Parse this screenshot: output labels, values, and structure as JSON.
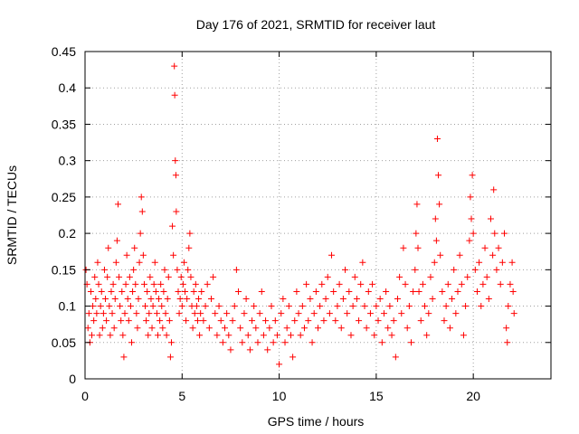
{
  "chart_data": {
    "type": "scatter",
    "title": "Day 176 of 2021, SRMTID for receiver laut",
    "xlabel": "GPS time / hours",
    "ylabel": "SRMTID / TECUs",
    "xlim": [
      0,
      24
    ],
    "ylim": [
      0,
      0.45
    ],
    "xticks": [
      0,
      5,
      10,
      15,
      20
    ],
    "xtick_labels": [
      "0",
      "5",
      "10",
      "15",
      "20"
    ],
    "yticks": [
      0,
      0.05,
      0.1,
      0.15,
      0.2,
      0.25,
      0.3,
      0.35,
      0.4,
      0.45
    ],
    "ytick_labels": [
      "0",
      "0.05",
      "0.1",
      "0.15",
      "0.2",
      "0.25",
      "0.3",
      "0.35",
      "0.4",
      "0.45"
    ],
    "grid": true,
    "marker": "plus",
    "color": "#ff0000",
    "points": [
      [
        0.05,
        0.15
      ],
      [
        0.1,
        0.13
      ],
      [
        0.15,
        0.07
      ],
      [
        0.2,
        0.09
      ],
      [
        0.25,
        0.05
      ],
      [
        0.3,
        0.12
      ],
      [
        0.35,
        0.06
      ],
      [
        0.4,
        0.1
      ],
      [
        0.45,
        0.08
      ],
      [
        0.5,
        0.14
      ],
      [
        0.55,
        0.11
      ],
      [
        0.6,
        0.09
      ],
      [
        0.65,
        0.16
      ],
      [
        0.7,
        0.13
      ],
      [
        0.75,
        0.06
      ],
      [
        0.8,
        0.1
      ],
      [
        0.85,
        0.12
      ],
      [
        0.9,
        0.07
      ],
      [
        0.95,
        0.09
      ],
      [
        1.0,
        0.15
      ],
      [
        1.05,
        0.11
      ],
      [
        1.1,
        0.08
      ],
      [
        1.15,
        0.14
      ],
      [
        1.2,
        0.18
      ],
      [
        1.25,
        0.1
      ],
      [
        1.3,
        0.06
      ],
      [
        1.35,
        0.12
      ],
      [
        1.4,
        0.09
      ],
      [
        1.45,
        0.13
      ],
      [
        1.5,
        0.07
      ],
      [
        1.55,
        0.11
      ],
      [
        1.6,
        0.16
      ],
      [
        1.65,
        0.19
      ],
      [
        1.7,
        0.24
      ],
      [
        1.75,
        0.14
      ],
      [
        1.8,
        0.1
      ],
      [
        1.85,
        0.08
      ],
      [
        1.9,
        0.12
      ],
      [
        1.95,
        0.06
      ],
      [
        2.0,
        0.03
      ],
      [
        2.05,
        0.09
      ],
      [
        2.1,
        0.13
      ],
      [
        2.15,
        0.17
      ],
      [
        2.2,
        0.11
      ],
      [
        2.25,
        0.08
      ],
      [
        2.3,
        0.14
      ],
      [
        2.35,
        0.1
      ],
      [
        2.4,
        0.05
      ],
      [
        2.45,
        0.12
      ],
      [
        2.5,
        0.15
      ],
      [
        2.55,
        0.18
      ],
      [
        2.6,
        0.13
      ],
      [
        2.65,
        0.09
      ],
      [
        2.7,
        0.07
      ],
      [
        2.75,
        0.11
      ],
      [
        2.8,
        0.16
      ],
      [
        2.85,
        0.2
      ],
      [
        2.9,
        0.25
      ],
      [
        2.95,
        0.23
      ],
      [
        3.0,
        0.17
      ],
      [
        3.05,
        0.13
      ],
      [
        3.1,
        0.1
      ],
      [
        3.15,
        0.08
      ],
      [
        3.2,
        0.12
      ],
      [
        3.25,
        0.06
      ],
      [
        3.3,
        0.09
      ],
      [
        3.35,
        0.14
      ],
      [
        3.4,
        0.11
      ],
      [
        3.45,
        0.07
      ],
      [
        3.5,
        0.1
      ],
      [
        3.55,
        0.13
      ],
      [
        3.6,
        0.16
      ],
      [
        3.65,
        0.12
      ],
      [
        3.7,
        0.09
      ],
      [
        3.75,
        0.06
      ],
      [
        3.8,
        0.11
      ],
      [
        3.85,
        0.08
      ],
      [
        3.9,
        0.13
      ],
      [
        3.95,
        0.1
      ],
      [
        4.0,
        0.07
      ],
      [
        4.05,
        0.12
      ],
      [
        4.1,
        0.15
      ],
      [
        4.15,
        0.09
      ],
      [
        4.2,
        0.06
      ],
      [
        4.25,
        0.11
      ],
      [
        4.3,
        0.14
      ],
      [
        4.35,
        0.08
      ],
      [
        4.4,
        0.03
      ],
      [
        4.45,
        0.05
      ],
      [
        4.5,
        0.21
      ],
      [
        4.55,
        0.17
      ],
      [
        4.6,
        0.43
      ],
      [
        4.62,
        0.39
      ],
      [
        4.65,
        0.3
      ],
      [
        4.68,
        0.28
      ],
      [
        4.7,
        0.23
      ],
      [
        4.75,
        0.15
      ],
      [
        4.8,
        0.12
      ],
      [
        4.85,
        0.09
      ],
      [
        4.9,
        0.11
      ],
      [
        4.95,
        0.14
      ],
      [
        5.0,
        0.1
      ],
      [
        5.05,
        0.13
      ],
      [
        5.1,
        0.16
      ],
      [
        5.15,
        0.12
      ],
      [
        5.2,
        0.08
      ],
      [
        5.25,
        0.11
      ],
      [
        5.3,
        0.15
      ],
      [
        5.35,
        0.18
      ],
      [
        5.4,
        0.2
      ],
      [
        5.45,
        0.14
      ],
      [
        5.5,
        0.1
      ],
      [
        5.55,
        0.07
      ],
      [
        5.6,
        0.12
      ],
      [
        5.65,
        0.09
      ],
      [
        5.7,
        0.13
      ],
      [
        5.75,
        0.1
      ],
      [
        5.8,
        0.08
      ],
      [
        5.85,
        0.11
      ],
      [
        5.9,
        0.06
      ],
      [
        5.95,
        0.09
      ],
      [
        6.0,
        0.12
      ],
      [
        6.1,
        0.08
      ],
      [
        6.2,
        0.1
      ],
      [
        6.3,
        0.13
      ],
      [
        6.4,
        0.07
      ],
      [
        6.5,
        0.11
      ],
      [
        6.6,
        0.14
      ],
      [
        6.7,
        0.09
      ],
      [
        6.8,
        0.06
      ],
      [
        6.9,
        0.1
      ],
      [
        7.0,
        0.08
      ],
      [
        7.1,
        0.05
      ],
      [
        7.2,
        0.07
      ],
      [
        7.3,
        0.09
      ],
      [
        7.4,
        0.06
      ],
      [
        7.5,
        0.04
      ],
      [
        7.6,
        0.08
      ],
      [
        7.7,
        0.1
      ],
      [
        7.8,
        0.15
      ],
      [
        7.9,
        0.12
      ],
      [
        8.0,
        0.07
      ],
      [
        8.1,
        0.05
      ],
      [
        8.2,
        0.09
      ],
      [
        8.3,
        0.11
      ],
      [
        8.4,
        0.06
      ],
      [
        8.5,
        0.04
      ],
      [
        8.6,
        0.08
      ],
      [
        8.7,
        0.1
      ],
      [
        8.8,
        0.07
      ],
      [
        8.9,
        0.05
      ],
      [
        9.0,
        0.09
      ],
      [
        9.1,
        0.12
      ],
      [
        9.2,
        0.06
      ],
      [
        9.3,
        0.08
      ],
      [
        9.4,
        0.04
      ],
      [
        9.5,
        0.07
      ],
      [
        9.6,
        0.1
      ],
      [
        9.7,
        0.05
      ],
      [
        9.8,
        0.08
      ],
      [
        9.9,
        0.06
      ],
      [
        10.0,
        0.02
      ],
      [
        10.1,
        0.09
      ],
      [
        10.2,
        0.11
      ],
      [
        10.3,
        0.05
      ],
      [
        10.4,
        0.07
      ],
      [
        10.5,
        0.1
      ],
      [
        10.6,
        0.06
      ],
      [
        10.7,
        0.03
      ],
      [
        10.8,
        0.08
      ],
      [
        10.9,
        0.12
      ],
      [
        11.0,
        0.09
      ],
      [
        11.1,
        0.06
      ],
      [
        11.2,
        0.1
      ],
      [
        11.3,
        0.07
      ],
      [
        11.4,
        0.13
      ],
      [
        11.5,
        0.08
      ],
      [
        11.6,
        0.11
      ],
      [
        11.7,
        0.05
      ],
      [
        11.8,
        0.09
      ],
      [
        11.9,
        0.12
      ],
      [
        12.0,
        0.07
      ],
      [
        12.1,
        0.1
      ],
      [
        12.2,
        0.13
      ],
      [
        12.3,
        0.08
      ],
      [
        12.4,
        0.11
      ],
      [
        12.5,
        0.14
      ],
      [
        12.6,
        0.09
      ],
      [
        12.7,
        0.17
      ],
      [
        12.8,
        0.12
      ],
      [
        12.9,
        0.08
      ],
      [
        13.0,
        0.1
      ],
      [
        13.1,
        0.13
      ],
      [
        13.2,
        0.07
      ],
      [
        13.3,
        0.11
      ],
      [
        13.4,
        0.15
      ],
      [
        13.5,
        0.09
      ],
      [
        13.6,
        0.12
      ],
      [
        13.7,
        0.06
      ],
      [
        13.8,
        0.1
      ],
      [
        13.9,
        0.14
      ],
      [
        14.0,
        0.11
      ],
      [
        14.1,
        0.08
      ],
      [
        14.2,
        0.13
      ],
      [
        14.3,
        0.16
      ],
      [
        14.4,
        0.1
      ],
      [
        14.5,
        0.07
      ],
      [
        14.6,
        0.12
      ],
      [
        14.7,
        0.09
      ],
      [
        14.8,
        0.13
      ],
      [
        14.9,
        0.06
      ],
      [
        15.0,
        0.1
      ],
      [
        15.1,
        0.08
      ],
      [
        15.2,
        0.11
      ],
      [
        15.3,
        0.05
      ],
      [
        15.4,
        0.09
      ],
      [
        15.5,
        0.12
      ],
      [
        15.6,
        0.07
      ],
      [
        15.7,
        0.1
      ],
      [
        15.8,
        0.06
      ],
      [
        15.9,
        0.08
      ],
      [
        16.0,
        0.03
      ],
      [
        16.1,
        0.11
      ],
      [
        16.2,
        0.14
      ],
      [
        16.3,
        0.09
      ],
      [
        16.4,
        0.18
      ],
      [
        16.5,
        0.13
      ],
      [
        16.6,
        0.07
      ],
      [
        16.7,
        0.1
      ],
      [
        16.8,
        0.05
      ],
      [
        16.9,
        0.12
      ],
      [
        17.0,
        0.15
      ],
      [
        17.05,
        0.2
      ],
      [
        17.1,
        0.24
      ],
      [
        17.15,
        0.18
      ],
      [
        17.2,
        0.12
      ],
      [
        17.3,
        0.08
      ],
      [
        17.4,
        0.13
      ],
      [
        17.5,
        0.1
      ],
      [
        17.6,
        0.06
      ],
      [
        17.7,
        0.09
      ],
      [
        17.8,
        0.14
      ],
      [
        17.9,
        0.11
      ],
      [
        18.0,
        0.16
      ],
      [
        18.05,
        0.22
      ],
      [
        18.1,
        0.19
      ],
      [
        18.15,
        0.33
      ],
      [
        18.2,
        0.28
      ],
      [
        18.25,
        0.24
      ],
      [
        18.3,
        0.17
      ],
      [
        18.4,
        0.12
      ],
      [
        18.5,
        0.08
      ],
      [
        18.6,
        0.1
      ],
      [
        18.7,
        0.13
      ],
      [
        18.8,
        0.07
      ],
      [
        18.9,
        0.11
      ],
      [
        19.0,
        0.15
      ],
      [
        19.1,
        0.09
      ],
      [
        19.2,
        0.12
      ],
      [
        19.3,
        0.17
      ],
      [
        19.4,
        0.13
      ],
      [
        19.5,
        0.06
      ],
      [
        19.6,
        0.1
      ],
      [
        19.7,
        0.14
      ],
      [
        19.8,
        0.19
      ],
      [
        19.85,
        0.25
      ],
      [
        19.9,
        0.22
      ],
      [
        19.95,
        0.28
      ],
      [
        20.0,
        0.2
      ],
      [
        20.1,
        0.15
      ],
      [
        20.2,
        0.12
      ],
      [
        20.3,
        0.16
      ],
      [
        20.4,
        0.1
      ],
      [
        20.5,
        0.13
      ],
      [
        20.6,
        0.18
      ],
      [
        20.7,
        0.14
      ],
      [
        20.8,
        0.11
      ],
      [
        20.9,
        0.22
      ],
      [
        21.0,
        0.17
      ],
      [
        21.05,
        0.26
      ],
      [
        21.1,
        0.2
      ],
      [
        21.2,
        0.15
      ],
      [
        21.3,
        0.18
      ],
      [
        21.4,
        0.13
      ],
      [
        21.5,
        0.16
      ],
      [
        21.6,
        0.2
      ],
      [
        21.7,
        0.07
      ],
      [
        21.75,
        0.05
      ],
      [
        21.8,
        0.1
      ],
      [
        21.9,
        0.13
      ],
      [
        22.0,
        0.16
      ],
      [
        22.05,
        0.12
      ],
      [
        22.1,
        0.09
      ]
    ]
  }
}
